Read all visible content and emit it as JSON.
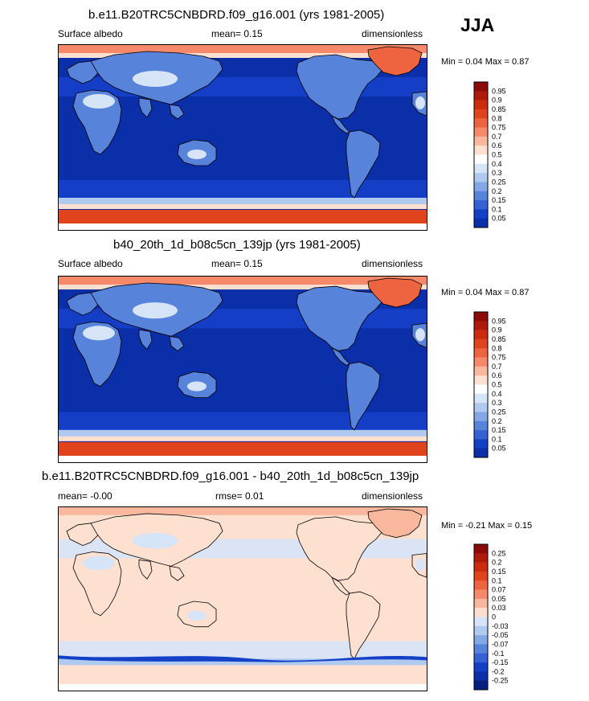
{
  "season": "JJA",
  "chart_data": [
    {
      "type": "heatmap",
      "title": "b.e11.B20TRC5CNBDRD.f09_g16.001 (yrs 1981-2005)",
      "left_label": "Surface albedo",
      "center_label": "mean=  0.15",
      "right_label": "dimensionless",
      "minmax_text": "Min =  0.04 Max =   0.87",
      "colorbar": {
        "levels": [
          "0.95",
          "0.9",
          "0.85",
          "0.8",
          "0.75",
          "0.7",
          "0.6",
          "0.5",
          "0.4",
          "0.3",
          "0.25",
          "0.2",
          "0.15",
          "0.1",
          "0.05"
        ],
        "colors": [
          "#8c0a0a",
          "#b01a0a",
          "#cc2b10",
          "#e0441c",
          "#ee6440",
          "#f5896a",
          "#f9b89e",
          "#fde0cf",
          "#ffffff",
          "#d6e4f7",
          "#b0c9ef",
          "#84a8e6",
          "#5883db",
          "#3461d6",
          "#1440c8",
          "#0a2fa8"
        ]
      },
      "field": {
        "ocean": "#0a2fa8",
        "ocean_midlat": "#1440c8",
        "arctic": "#f5896a",
        "antarctic": "#e0441c",
        "greenland": "#ee6440",
        "land": "#5883db",
        "desert": "#d6e4f7"
      }
    },
    {
      "type": "heatmap",
      "title": "b40_20th_1d_b08c5cn_139jp (yrs 1981-2005)",
      "left_label": "Surface albedo",
      "center_label": "mean=  0.15",
      "right_label": "dimensionless",
      "minmax_text": "Min =  0.04 Max =   0.87",
      "colorbar": {
        "levels": [
          "0.95",
          "0.9",
          "0.85",
          "0.8",
          "0.75",
          "0.7",
          "0.6",
          "0.5",
          "0.4",
          "0.3",
          "0.25",
          "0.2",
          "0.15",
          "0.1",
          "0.05"
        ],
        "colors": [
          "#8c0a0a",
          "#b01a0a",
          "#cc2b10",
          "#e0441c",
          "#ee6440",
          "#f5896a",
          "#f9b89e",
          "#fde0cf",
          "#ffffff",
          "#d6e4f7",
          "#b0c9ef",
          "#84a8e6",
          "#5883db",
          "#3461d6",
          "#1440c8",
          "#0a2fa8"
        ]
      },
      "field": {
        "ocean": "#0a2fa8",
        "ocean_midlat": "#1440c8",
        "arctic": "#f5896a",
        "antarctic": "#e0441c",
        "greenland": "#ee6440",
        "land": "#5883db",
        "desert": "#d6e4f7"
      }
    },
    {
      "type": "heatmap",
      "title": "b.e11.B20TRC5CNBDRD.f09_g16.001 - b40_20th_1d_b08c5cn_139jp",
      "left_label": "mean=  -0.00",
      "center_label": "rmse=  0.01",
      "right_label": "dimensionless",
      "minmax_text": "Min =  -0.21 Max =   0.15",
      "colorbar": {
        "levels": [
          "0.25",
          "0.2",
          "0.15",
          "0.1",
          "0.07",
          "0.05",
          "0.03",
          "0",
          "-0.03",
          "-0.05",
          "-0.07",
          "-0.1",
          "-0.15",
          "-0.2",
          "-0.25"
        ],
        "colors": [
          "#8c0a0a",
          "#b01a0a",
          "#cc2b10",
          "#e0441c",
          "#ee6440",
          "#f5896a",
          "#f9b89e",
          "#fde0cf",
          "#d6e4f7",
          "#b0c9ef",
          "#84a8e6",
          "#5883db",
          "#3461d6",
          "#1440c8",
          "#0a2fa8",
          "#061e80"
        ]
      },
      "field": {
        "ocean": "#fde0cf",
        "ocean_midlat": "#d6e4f7",
        "arctic": "#f9b89e",
        "antarctic": "#fde0cf",
        "greenland": "#f9b89e",
        "land": "#fde0cf",
        "desert": "#d6e4f7"
      }
    }
  ]
}
